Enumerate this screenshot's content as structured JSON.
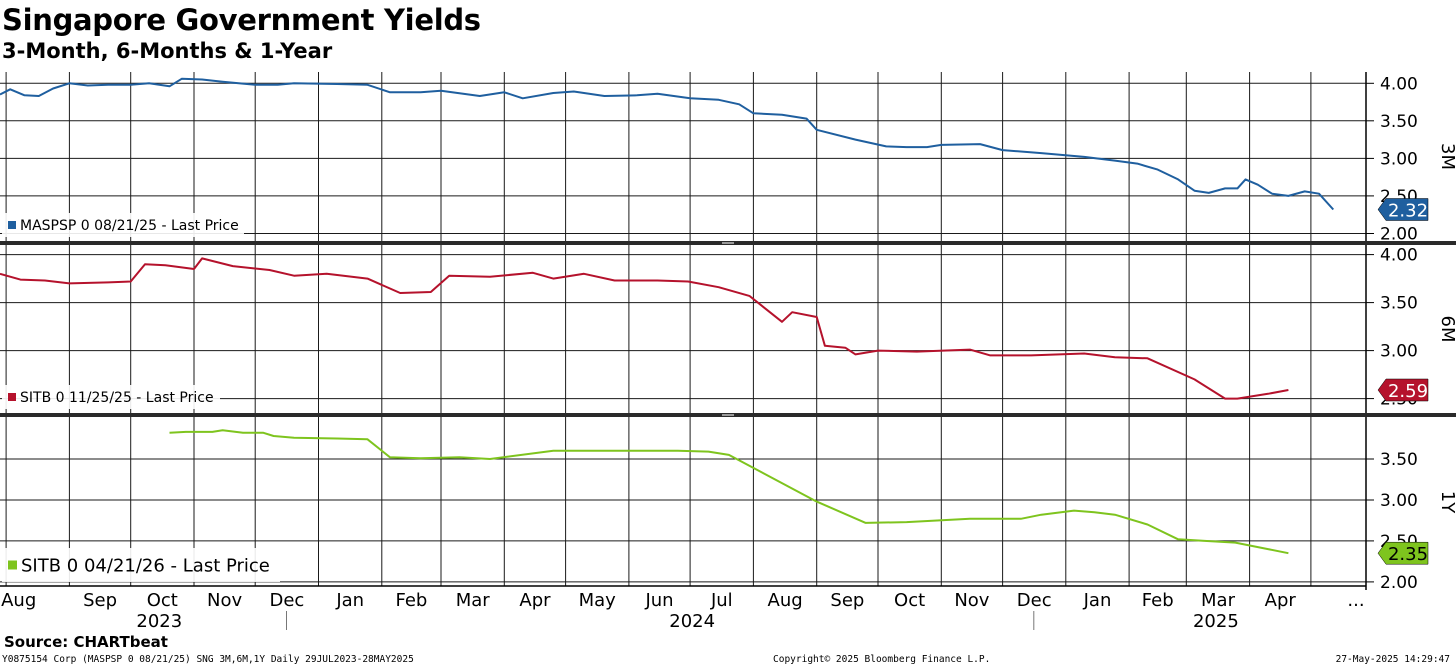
{
  "header": {
    "title": "Singapore Government Yields",
    "subtitle": "3-Month, 6-Months & 1-Year"
  },
  "footer": {
    "source": "Source: CHARTbeat",
    "left": "Y0875154 Corp (MASPSP 0 08/21/25) SNG 3M,6M,1Y  Daily 29JUL2023-28MAY2025",
    "middle": "Copyright© 2025 Bloomberg Finance L.P.",
    "right": "27-May-2025 14:29:47"
  },
  "colors": {
    "3M": "#1f5f9f",
    "6M": "#b5122c",
    "1Y": "#7ec41e"
  },
  "chart_data": {
    "type": "line",
    "x_range": [
      "2023-07-29",
      "2025-05-28"
    ],
    "x_months": [
      "Aug",
      "Sep",
      "Oct",
      "Nov",
      "Dec",
      "Jan",
      "Feb",
      "Mar",
      "Apr",
      "May",
      "Jun",
      "Jul",
      "Aug",
      "Sep",
      "Oct",
      "Nov",
      "Dec",
      "Jan",
      "Feb",
      "Mar",
      "Apr",
      "..."
    ],
    "x_years": [
      "2023",
      "2024",
      "2025"
    ],
    "grid": true,
    "panels": [
      {
        "id": "3M",
        "axis_label": "3M",
        "ylim": [
          1.9,
          4.15
        ],
        "yticks": [
          "4.00",
          "3.50",
          "3.00",
          "2.50",
          "2.00"
        ],
        "legend": "MASPSP 0 08/21/25 - Last Price",
        "last_value": "2.32",
        "color": "#1f5f9f",
        "series": [
          [
            "2023-07-29",
            3.85
          ],
          [
            "2023-08-03",
            3.92
          ],
          [
            "2023-08-10",
            3.84
          ],
          [
            "2023-08-17",
            3.83
          ],
          [
            "2023-08-24",
            3.93
          ],
          [
            "2023-09-01",
            4.0
          ],
          [
            "2023-09-10",
            3.97
          ],
          [
            "2023-09-20",
            3.98
          ],
          [
            "2023-10-01",
            3.98
          ],
          [
            "2023-10-10",
            4.0
          ],
          [
            "2023-10-20",
            3.96
          ],
          [
            "2023-10-26",
            4.06
          ],
          [
            "2023-11-05",
            4.05
          ],
          [
            "2023-11-15",
            4.02
          ],
          [
            "2023-12-01",
            3.98
          ],
          [
            "2023-12-12",
            3.98
          ],
          [
            "2023-12-20",
            4.0
          ],
          [
            "2024-01-10",
            3.99
          ],
          [
            "2024-01-25",
            3.98
          ],
          [
            "2024-02-05",
            3.88
          ],
          [
            "2024-02-20",
            3.88
          ],
          [
            "2024-03-01",
            3.9
          ],
          [
            "2024-03-20",
            3.83
          ],
          [
            "2024-04-01",
            3.88
          ],
          [
            "2024-04-10",
            3.8
          ],
          [
            "2024-04-25",
            3.87
          ],
          [
            "2024-05-05",
            3.89
          ],
          [
            "2024-05-20",
            3.83
          ],
          [
            "2024-06-05",
            3.84
          ],
          [
            "2024-06-15",
            3.86
          ],
          [
            "2024-07-01",
            3.8
          ],
          [
            "2024-07-15",
            3.78
          ],
          [
            "2024-07-25",
            3.72
          ],
          [
            "2024-08-01",
            3.6
          ],
          [
            "2024-08-15",
            3.58
          ],
          [
            "2024-08-27",
            3.53
          ],
          [
            "2024-09-01",
            3.38
          ],
          [
            "2024-09-20",
            3.25
          ],
          [
            "2024-10-05",
            3.16
          ],
          [
            "2024-10-15",
            3.15
          ],
          [
            "2024-10-25",
            3.15
          ],
          [
            "2024-11-01",
            3.18
          ],
          [
            "2024-11-20",
            3.19
          ],
          [
            "2024-12-01",
            3.11
          ],
          [
            "2024-12-20",
            3.07
          ],
          [
            "2025-01-10",
            3.02
          ],
          [
            "2025-01-25",
            2.97
          ],
          [
            "2025-02-05",
            2.93
          ],
          [
            "2025-02-15",
            2.85
          ],
          [
            "2025-02-25",
            2.72
          ],
          [
            "2025-03-05",
            2.57
          ],
          [
            "2025-03-12",
            2.54
          ],
          [
            "2025-03-20",
            2.6
          ],
          [
            "2025-03-26",
            2.6
          ],
          [
            "2025-03-30",
            2.72
          ],
          [
            "2025-04-05",
            2.65
          ],
          [
            "2025-04-12",
            2.53
          ],
          [
            "2025-04-20",
            2.5
          ],
          [
            "2025-04-28",
            2.56
          ],
          [
            "2025-05-05",
            2.53
          ],
          [
            "2025-05-12",
            2.32
          ]
        ]
      },
      {
        "id": "6M",
        "axis_label": "6M",
        "ylim": [
          2.35,
          4.1
        ],
        "yticks": [
          "4.00",
          "3.50",
          "3.00",
          "2.50"
        ],
        "legend": "SITB 0 11/25/25 - Last Price",
        "last_value": "2.59",
        "color": "#b5122c",
        "series": [
          [
            "2023-07-29",
            3.8
          ],
          [
            "2023-08-08",
            3.74
          ],
          [
            "2023-08-20",
            3.73
          ],
          [
            "2023-09-01",
            3.7
          ],
          [
            "2023-09-20",
            3.71
          ],
          [
            "2023-10-01",
            3.72
          ],
          [
            "2023-10-08",
            3.9
          ],
          [
            "2023-10-18",
            3.89
          ],
          [
            "2023-11-01",
            3.85
          ],
          [
            "2023-11-05",
            3.96
          ],
          [
            "2023-11-20",
            3.88
          ],
          [
            "2023-12-08",
            3.84
          ],
          [
            "2023-12-20",
            3.78
          ],
          [
            "2024-01-05",
            3.8
          ],
          [
            "2024-01-25",
            3.75
          ],
          [
            "2024-02-10",
            3.6
          ],
          [
            "2024-02-25",
            3.61
          ],
          [
            "2024-03-05",
            3.78
          ],
          [
            "2024-03-25",
            3.77
          ],
          [
            "2024-04-15",
            3.81
          ],
          [
            "2024-04-25",
            3.75
          ],
          [
            "2024-05-10",
            3.8
          ],
          [
            "2024-05-25",
            3.73
          ],
          [
            "2024-06-15",
            3.73
          ],
          [
            "2024-06-30",
            3.72
          ],
          [
            "2024-07-15",
            3.66
          ],
          [
            "2024-07-30",
            3.57
          ],
          [
            "2024-08-15",
            3.3
          ],
          [
            "2024-08-20",
            3.4
          ],
          [
            "2024-09-01",
            3.35
          ],
          [
            "2024-09-05",
            3.05
          ],
          [
            "2024-09-15",
            3.03
          ],
          [
            "2024-09-20",
            2.96
          ],
          [
            "2024-10-01",
            3.0
          ],
          [
            "2024-10-20",
            2.99
          ],
          [
            "2024-11-15",
            3.01
          ],
          [
            "2024-11-25",
            2.95
          ],
          [
            "2024-12-15",
            2.95
          ],
          [
            "2025-01-10",
            2.97
          ],
          [
            "2025-01-25",
            2.93
          ],
          [
            "2025-02-10",
            2.92
          ],
          [
            "2025-03-05",
            2.7
          ],
          [
            "2025-03-20",
            2.5
          ],
          [
            "2025-03-26",
            2.5
          ],
          [
            "2025-04-10",
            2.55
          ],
          [
            "2025-04-20",
            2.59
          ]
        ]
      },
      {
        "id": "1Y",
        "axis_label": "1Y",
        "ylim": [
          1.95,
          4.0
        ],
        "yticks": [
          "3.50",
          "3.00",
          "2.50",
          "2.00"
        ],
        "legend": "SITB 0 04/21/26 - Last Price",
        "last_value": "2.35",
        "color": "#7ec41e",
        "series": [
          [
            "2023-10-20",
            3.82
          ],
          [
            "2023-10-28",
            3.83
          ],
          [
            "2023-11-10",
            3.83
          ],
          [
            "2023-11-15",
            3.85
          ],
          [
            "2023-11-25",
            3.82
          ],
          [
            "2023-12-05",
            3.82
          ],
          [
            "2023-12-10",
            3.78
          ],
          [
            "2023-12-20",
            3.76
          ],
          [
            "2024-01-10",
            3.75
          ],
          [
            "2024-01-25",
            3.74
          ],
          [
            "2024-02-05",
            3.52
          ],
          [
            "2024-02-20",
            3.51
          ],
          [
            "2024-03-10",
            3.52
          ],
          [
            "2024-03-25",
            3.5
          ],
          [
            "2024-04-25",
            3.6
          ],
          [
            "2024-05-20",
            3.6
          ],
          [
            "2024-06-25",
            3.6
          ],
          [
            "2024-07-10",
            3.59
          ],
          [
            "2024-07-20",
            3.55
          ],
          [
            "2024-09-01",
            2.98
          ],
          [
            "2024-09-25",
            2.72
          ],
          [
            "2024-10-15",
            2.73
          ],
          [
            "2024-11-15",
            2.77
          ],
          [
            "2024-12-10",
            2.77
          ],
          [
            "2024-12-20",
            2.82
          ],
          [
            "2025-01-05",
            2.87
          ],
          [
            "2025-01-15",
            2.85
          ],
          [
            "2025-01-25",
            2.82
          ],
          [
            "2025-02-10",
            2.7
          ],
          [
            "2025-02-25",
            2.52
          ],
          [
            "2025-03-10",
            2.5
          ],
          [
            "2025-03-25",
            2.48
          ],
          [
            "2025-04-10",
            2.4
          ],
          [
            "2025-04-20",
            2.35
          ]
        ]
      }
    ]
  }
}
